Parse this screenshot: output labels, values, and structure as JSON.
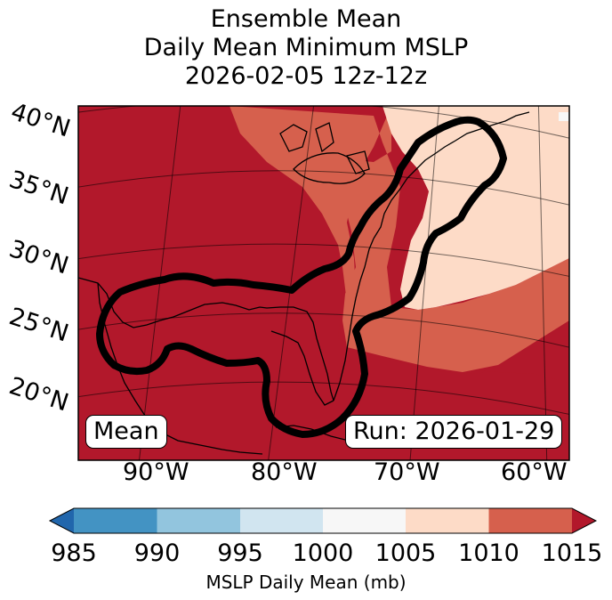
{
  "title": {
    "line1": "Ensemble Mean",
    "line2": "Daily Mean Minimum MSLP",
    "line3": "2026-02-05 12z-12z"
  },
  "map": {
    "lat_labels": [
      "40°N",
      "35°N",
      "30°N",
      "25°N",
      "20°N"
    ],
    "lon_labels": [
      "90°W",
      "80°W",
      "70°W",
      "60°W"
    ],
    "left_box": "Mean",
    "right_box": "Run: 2026-01-29",
    "fill_colors": {
      "1000_1005": "#f7f7f7",
      "1005_1010": "#fddbc7",
      "1010_1015": "#d6604d",
      "over_1015": "#b2182b"
    }
  },
  "colorbar": {
    "label": "MSLP Daily Mean (mb)",
    "ticks": [
      "985",
      "990",
      "995",
      "1000",
      "1005",
      "1010",
      "1015"
    ],
    "colors": [
      "#4393c3",
      "#92c5de",
      "#d1e5f0",
      "#f7f7f7",
      "#fddbc7",
      "#d6604d"
    ],
    "under_color": "#2166ac",
    "over_color": "#b2182b"
  }
}
